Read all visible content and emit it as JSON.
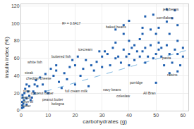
{
  "chart_data": {
    "type": "scatter",
    "xlabel": "carbohydrates (g)",
    "ylabel": "insulin index (%)",
    "xlim": [
      0,
      62
    ],
    "ylim": [
      0,
      122
    ],
    "xticks": [
      0,
      10,
      20,
      30,
      40,
      50,
      60
    ],
    "yticks": [
      0,
      20,
      40,
      60,
      80,
      100,
      120
    ],
    "grid": true,
    "series": [
      {
        "type": "scatter",
        "color": "#2060b0",
        "marker": "square",
        "x": [
          0.3,
          0.3,
          0.3,
          0.5,
          0.5,
          0.8,
          0.8,
          1,
          1.2,
          1.5,
          2,
          2,
          2,
          2.5,
          3,
          3,
          3.5,
          4,
          4.5,
          5,
          5,
          5.5,
          6,
          7,
          8,
          9,
          9,
          10,
          11,
          12,
          13,
          13,
          14,
          15,
          16,
          17,
          18,
          19,
          20,
          20,
          21,
          22,
          23,
          24,
          25,
          26,
          27,
          28,
          29,
          30,
          30,
          31,
          32,
          33,
          34,
          35,
          35,
          36,
          37,
          38,
          38,
          39,
          40,
          40,
          40,
          41,
          42,
          42,
          43,
          44,
          44,
          45,
          45,
          46,
          46,
          47,
          48,
          49,
          50,
          50,
          50,
          51,
          51,
          52,
          52,
          53,
          54,
          55,
          55,
          55,
          56,
          57,
          58,
          58,
          58,
          59,
          60,
          60,
          35,
          38,
          40,
          45,
          48,
          51,
          54,
          56,
          58,
          46,
          49,
          54,
          57
        ],
        "values": [
          3,
          6,
          10,
          15,
          18,
          4,
          8,
          12,
          20,
          25,
          7,
          14,
          30,
          22,
          17,
          28,
          12,
          15,
          22,
          20,
          30,
          35,
          28,
          38,
          30,
          22,
          42,
          20,
          48,
          40,
          52,
          46,
          33,
          26,
          43,
          36,
          50,
          58,
          30,
          52,
          62,
          40,
          48,
          58,
          28,
          52,
          46,
          56,
          68,
          50,
          62,
          68,
          65,
          52,
          72,
          60,
          78,
          62,
          55,
          88,
          70,
          62,
          52,
          65,
          80,
          72,
          58,
          75,
          68,
          62,
          82,
          68,
          88,
          55,
          72,
          62,
          75,
          60,
          32,
          65,
          88,
          70,
          78,
          62,
          72,
          52,
          75,
          43,
          65,
          88,
          55,
          70,
          45,
          65,
          80,
          52,
          62,
          72,
          93,
          98,
          103,
          95,
          93,
          95,
          102,
          106,
          98,
          108,
          110,
          116,
          115
        ]
      },
      {
        "type": "line",
        "color": "#80b8e0",
        "line_style": "dashed",
        "x": [
          0,
          62
        ],
        "values": [
          14,
          69.8
        ]
      }
    ],
    "annotations": [
      {
        "text": "R² = 0.6417",
        "x": 15,
        "y": 100
      },
      {
        "text": "white fish",
        "x": 2.0,
        "y": 56
      },
      {
        "text": "steak",
        "x": 1.0,
        "y": 44
      },
      {
        "text": "cheddar cheese",
        "x": 1.5,
        "y": 37
      },
      {
        "text": "tuna",
        "x": 0.5,
        "y": 23
      },
      {
        "text": "bacon\nolive oil\nbutter",
        "x": 0.3,
        "y": 10
      },
      {
        "text": "coconut butter",
        "x": 3.5,
        "y": 20
      },
      {
        "text": "peanut butter",
        "x": 7.5,
        "y": 13
      },
      {
        "text": "bologna",
        "x": 11,
        "y": 8
      },
      {
        "text": "buttered fish",
        "x": 11,
        "y": 62
      },
      {
        "text": "full cream milk",
        "x": 16,
        "y": 23
      },
      {
        "text": "icecream",
        "x": 21,
        "y": 70
      },
      {
        "text": "navy beans",
        "x": 30,
        "y": 24
      },
      {
        "text": "coleslaw",
        "x": 35,
        "y": 17
      },
      {
        "text": "baked beans",
        "x": 31,
        "y": 96
      },
      {
        "text": "porridge",
        "x": 40,
        "y": 32
      },
      {
        "text": "All Bran",
        "x": 45,
        "y": 20
      },
      {
        "text": "pasta",
        "x": 52,
        "y": 61
      },
      {
        "text": "raisins",
        "x": 54,
        "y": 41
      },
      {
        "text": "cornflakes",
        "x": 50,
        "y": 107
      },
      {
        "text": "jellybeans",
        "x": 52,
        "y": 116
      }
    ]
  }
}
